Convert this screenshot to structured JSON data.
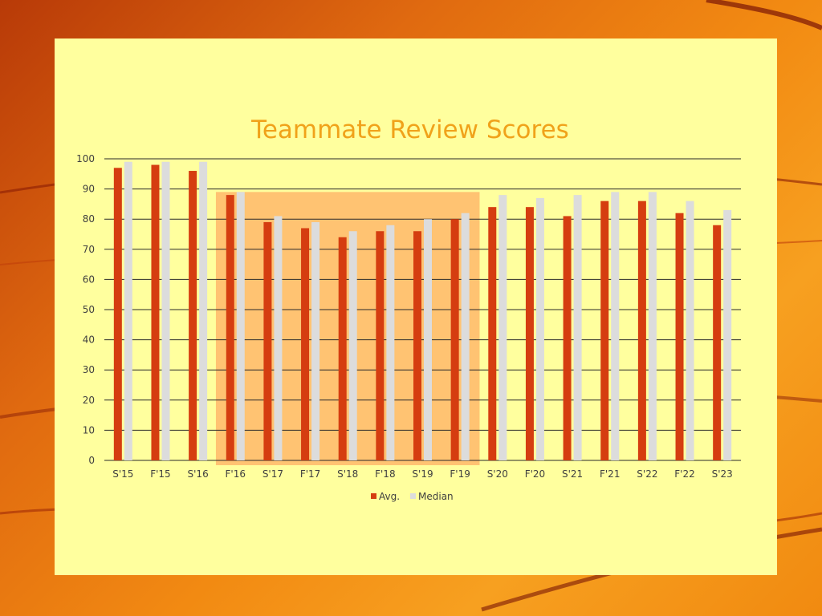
{
  "slide": {
    "background_color": "#e87a12",
    "panel_color": "#ffff9e"
  },
  "chart_data": {
    "type": "bar",
    "title": "Teammate Review Scores",
    "xlabel": "",
    "ylabel": "",
    "ylim": [
      0,
      100
    ],
    "yticks": [
      0,
      10,
      20,
      30,
      40,
      50,
      60,
      70,
      80,
      90,
      100
    ],
    "grid": true,
    "legend_position": "bottom",
    "categories": [
      "S'15",
      "F'15",
      "S'16",
      "F'16",
      "S'17",
      "F'17",
      "S'18",
      "F'18",
      "S'19",
      "F'19",
      "S'20",
      "F'20",
      "S'21",
      "F'21",
      "S'22",
      "F'22",
      "S'23"
    ],
    "series": [
      {
        "name": "Avg.",
        "color": "#d53d10",
        "values": [
          97,
          98,
          96,
          88,
          79,
          77,
          74,
          76,
          76,
          80,
          84,
          84,
          81,
          86,
          86,
          82,
          78
        ]
      },
      {
        "name": "Median",
        "color": "#dcdcdc",
        "values": [
          99,
          99,
          99,
          89,
          81,
          79,
          76,
          78,
          80,
          82,
          88,
          87,
          88,
          89,
          89,
          86,
          83
        ]
      }
    ],
    "highlight": {
      "from_category": "F'16",
      "to_category": "F'19",
      "color": "#ffb86a"
    }
  }
}
